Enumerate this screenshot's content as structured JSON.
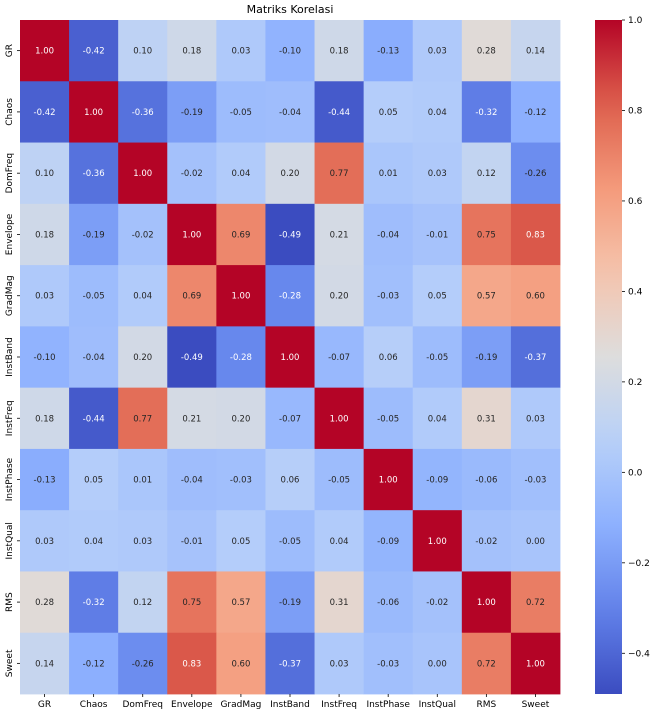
{
  "chart_data": {
    "type": "heatmap",
    "title": "Matriks Korelasi",
    "categories": [
      "GR",
      "Chaos",
      "DomFreq",
      "Envelope",
      "GradMag",
      "InstBand",
      "InstFreq",
      "InstPhase",
      "InstQual",
      "RMS",
      "Sweet"
    ],
    "values": [
      [
        1.0,
        -0.42,
        0.1,
        0.18,
        0.03,
        -0.1,
        0.18,
        -0.13,
        0.03,
        0.28,
        0.14
      ],
      [
        -0.42,
        1.0,
        -0.36,
        -0.19,
        -0.05,
        -0.04,
        -0.44,
        0.05,
        0.04,
        -0.32,
        -0.12
      ],
      [
        0.1,
        -0.36,
        1.0,
        -0.02,
        0.04,
        0.2,
        0.77,
        0.01,
        0.03,
        0.12,
        -0.26
      ],
      [
        0.18,
        -0.19,
        -0.02,
        1.0,
        0.69,
        -0.49,
        0.21,
        -0.04,
        -0.01,
        0.75,
        0.83
      ],
      [
        0.03,
        -0.05,
        0.04,
        0.69,
        1.0,
        -0.28,
        0.2,
        -0.03,
        0.05,
        0.57,
        0.6
      ],
      [
        -0.1,
        -0.04,
        0.2,
        -0.49,
        -0.28,
        1.0,
        -0.07,
        0.06,
        -0.05,
        -0.19,
        -0.37
      ],
      [
        0.18,
        -0.44,
        0.77,
        0.21,
        0.2,
        -0.07,
        1.0,
        -0.05,
        0.04,
        0.31,
        0.03
      ],
      [
        -0.13,
        0.05,
        0.01,
        -0.04,
        -0.03,
        0.06,
        -0.05,
        1.0,
        -0.09,
        -0.06,
        -0.03
      ],
      [
        0.03,
        0.04,
        0.03,
        -0.01,
        0.05,
        -0.05,
        0.04,
        -0.09,
        1.0,
        -0.02,
        0.0
      ],
      [
        0.28,
        -0.32,
        0.12,
        0.75,
        0.57,
        -0.19,
        0.31,
        -0.06,
        -0.02,
        1.0,
        0.72
      ],
      [
        0.14,
        -0.12,
        -0.26,
        0.83,
        0.6,
        -0.37,
        0.03,
        -0.03,
        0.0,
        0.72,
        1.0
      ]
    ],
    "colormap": "coolwarm",
    "vmin": -0.49,
    "vmax": 1.0,
    "colorbar_ticks": [
      1.0,
      0.8,
      0.6,
      0.4,
      0.2,
      0.0,
      -0.2,
      -0.4
    ],
    "colorbar_tick_labels": [
      "1.0",
      "0.8",
      "0.6",
      "0.4",
      "0.2",
      "0.0",
      "−0.2",
      "−0.4"
    ],
    "annotation_format": "0.00"
  }
}
